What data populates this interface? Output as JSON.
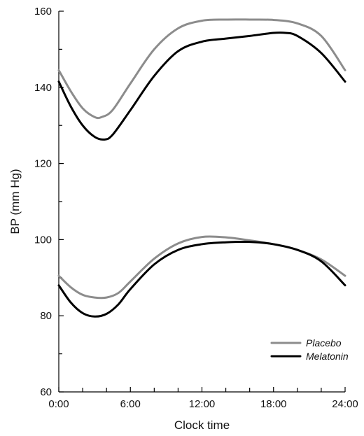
{
  "chart_data": {
    "type": "line",
    "title": "",
    "xlabel": "Clock time",
    "ylabel": "BP (mm Hg)",
    "xlim": [
      0,
      24
    ],
    "ylim": [
      60,
      160
    ],
    "x_ticks": [
      "0:00",
      "6:00",
      "12:00",
      "18:00",
      "24:00"
    ],
    "y_ticks": [
      "60",
      "80",
      "100",
      "120",
      "140",
      "160"
    ],
    "grid": false,
    "legend": {
      "position": "bottom-right"
    },
    "series": [
      {
        "name": "Placebo",
        "color": "#8c8c8c",
        "group": "systolic",
        "x": [
          0,
          1,
          2,
          3,
          3.6,
          4.5,
          6,
          8,
          10,
          12,
          14,
          16,
          18,
          20,
          22,
          24
        ],
        "y": [
          144.5,
          139,
          134.5,
          132.2,
          132.2,
          134,
          141,
          150,
          155.5,
          157.5,
          157.8,
          157.8,
          157.7,
          156.8,
          153.5,
          144.5
        ]
      },
      {
        "name": "Melatonin",
        "color": "#000000",
        "group": "systolic",
        "x": [
          0,
          1,
          2,
          3,
          3.8,
          4.5,
          6,
          8,
          10,
          12,
          14,
          16,
          18,
          19,
          20,
          22,
          24
        ],
        "y": [
          141.5,
          135,
          130,
          127,
          126.3,
          127.5,
          134,
          143,
          149.5,
          152,
          152.8,
          153.5,
          154.3,
          154.3,
          153.5,
          149,
          141.5
        ]
      },
      {
        "name": "Placebo",
        "color": "#8c8c8c",
        "group": "diastolic",
        "x": [
          0,
          1,
          2,
          3,
          4,
          5,
          6,
          8,
          10,
          12,
          14,
          16,
          18,
          20,
          22,
          24
        ],
        "y": [
          90.5,
          87.5,
          85.5,
          84.8,
          84.8,
          86,
          89,
          95,
          99,
          100.7,
          100.6,
          99.8,
          98.8,
          97.3,
          94.8,
          90.5
        ]
      },
      {
        "name": "Melatonin",
        "color": "#000000",
        "group": "diastolic",
        "x": [
          0,
          1,
          2,
          3,
          4,
          5,
          6,
          8,
          10,
          12,
          14,
          16,
          18,
          20,
          22,
          24
        ],
        "y": [
          88,
          83.5,
          80.7,
          79.8,
          80.5,
          83,
          87,
          93.5,
          97.3,
          98.8,
          99.3,
          99.4,
          98.8,
          97.3,
          94.3,
          88
        ]
      }
    ]
  }
}
